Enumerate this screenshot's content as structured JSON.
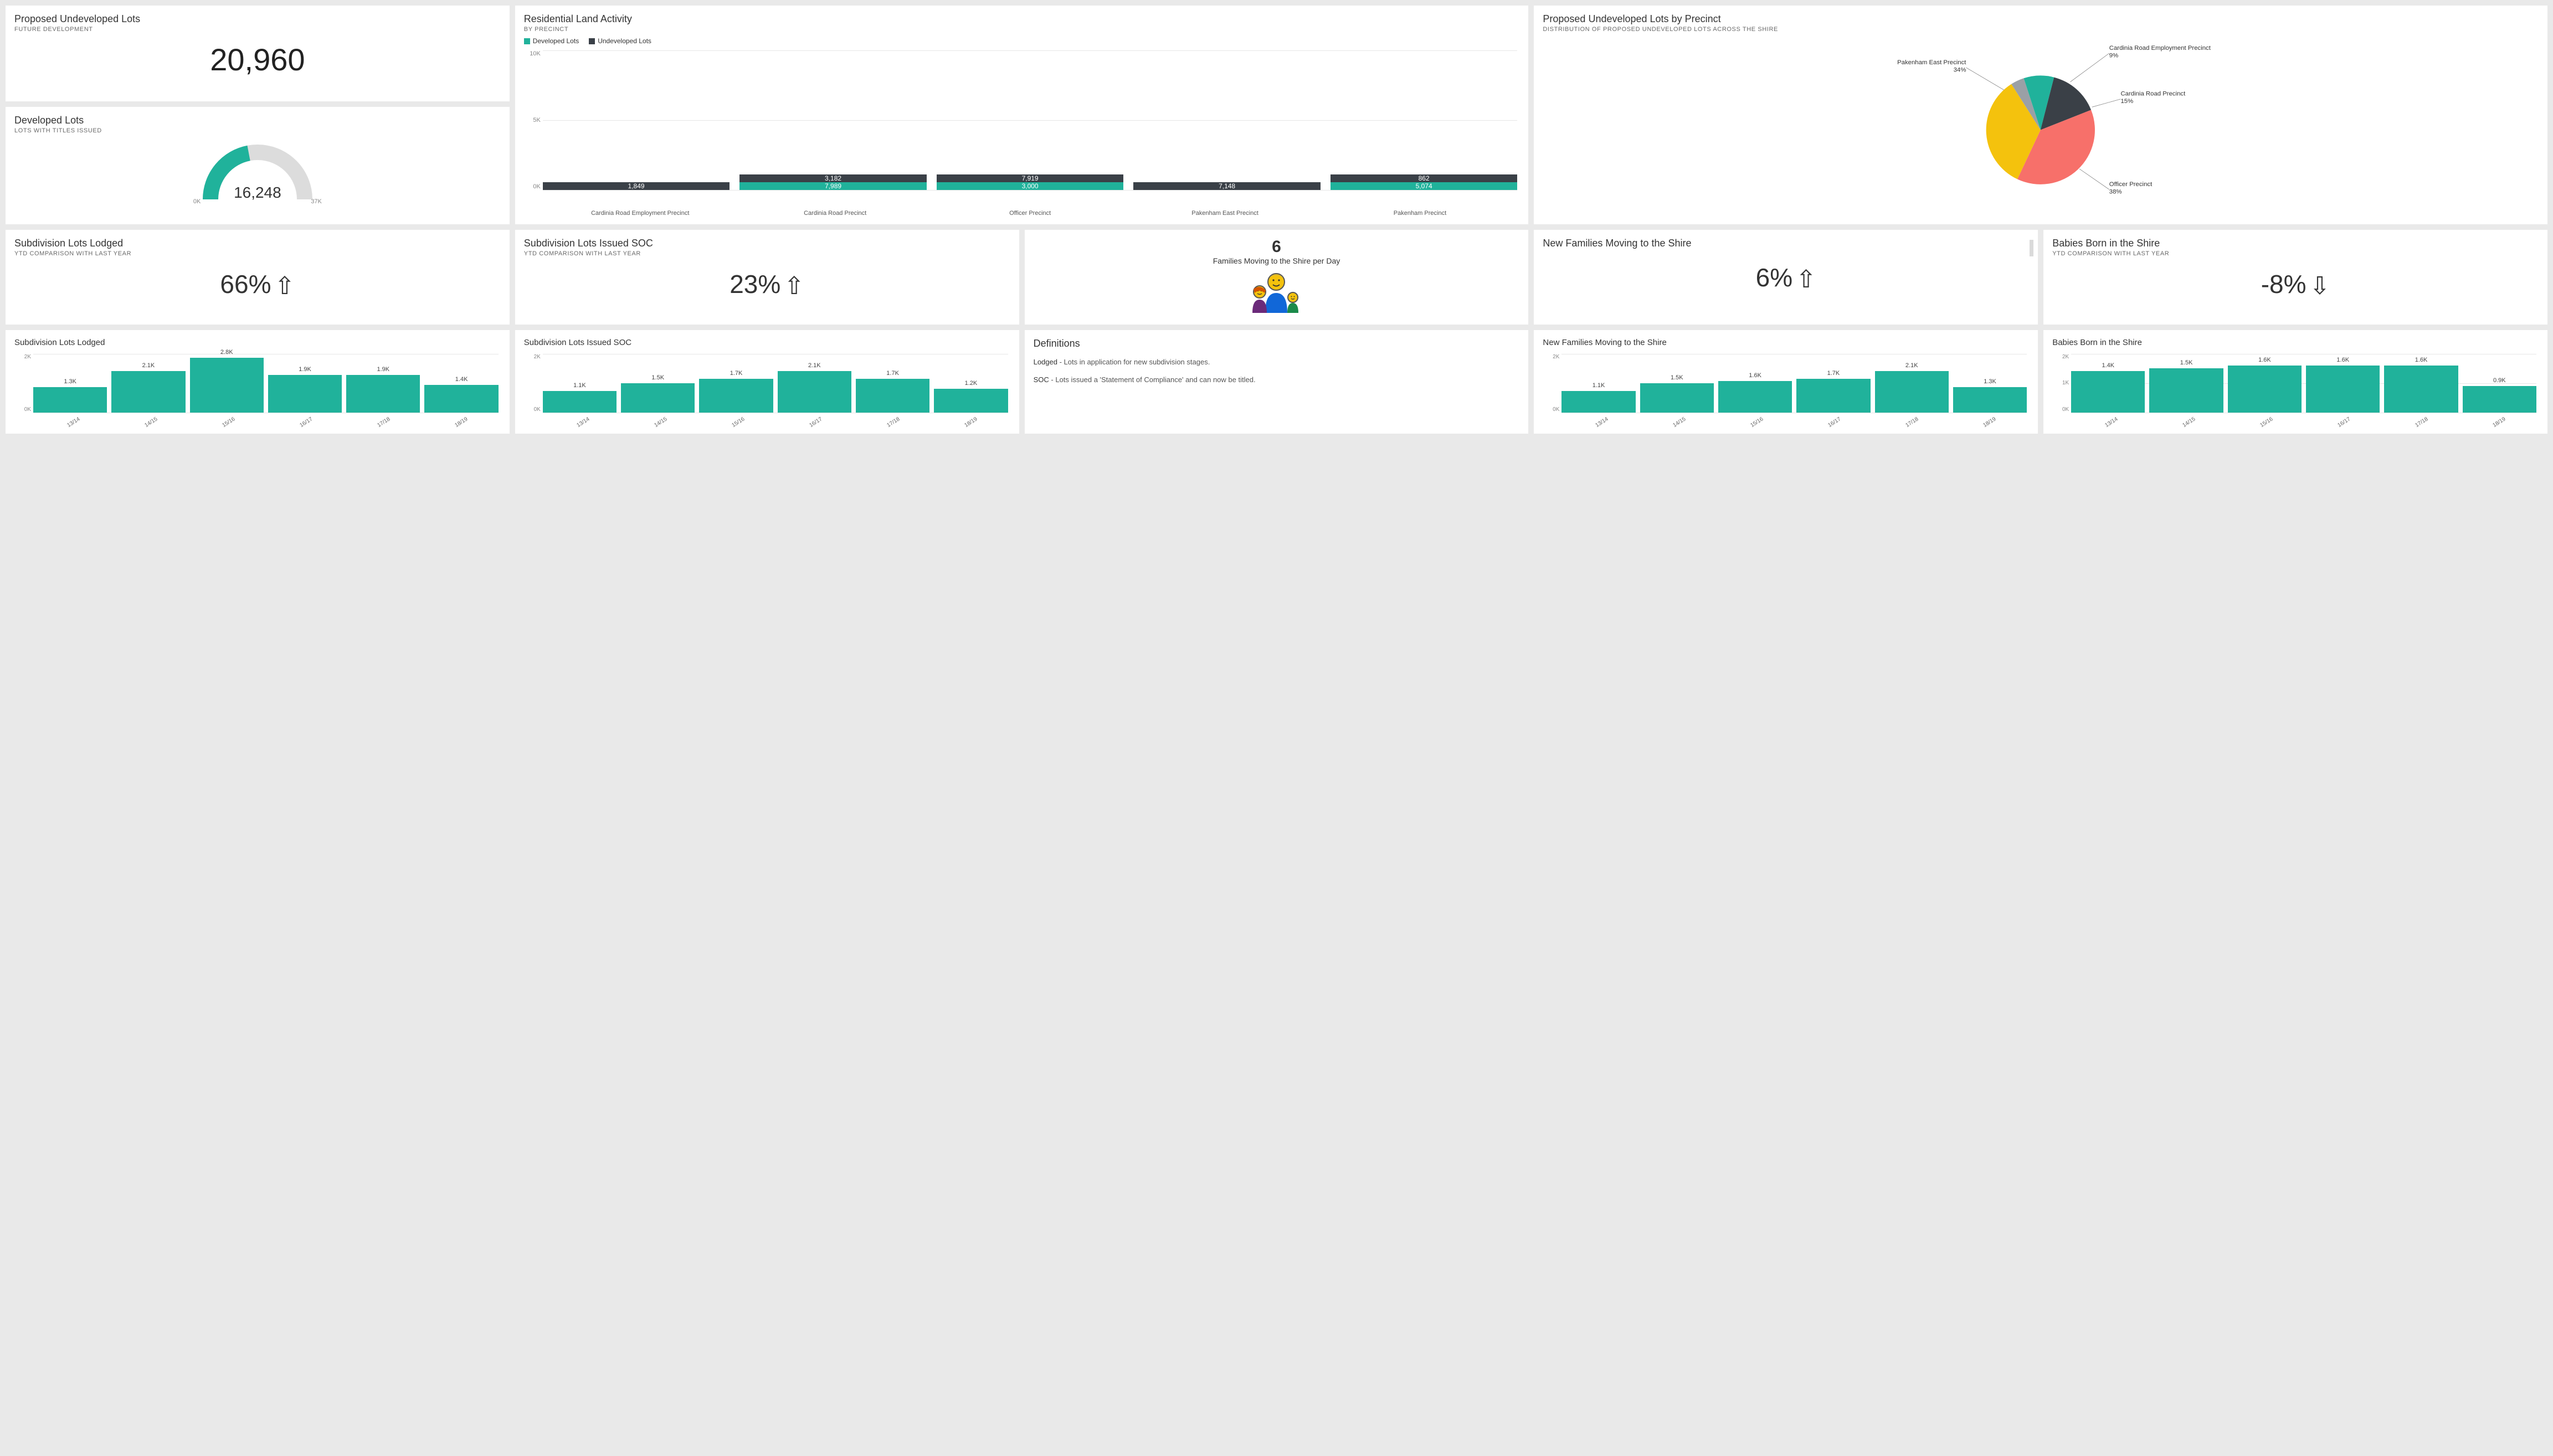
{
  "colors": {
    "teal": "#20b29b",
    "dark": "#3a4047",
    "yellow": "#f4c20d",
    "coral": "#f7706a",
    "grey": "#9aa0a6",
    "card_bg": "#ffffff",
    "page_bg": "#e9e9e9",
    "grid": "#e6e6e6"
  },
  "cards": {
    "undeveloped_kpi": {
      "title": "Proposed Undeveloped Lots",
      "sub": "FUTURE DEVELOPMENT",
      "value": "20,960"
    },
    "developed_gauge": {
      "title": "Developed Lots",
      "sub": "LOTS WITH TITLES ISSUED",
      "value": "16,248",
      "min": "0K",
      "max": "37K",
      "fraction": 0.44
    },
    "land_activity": {
      "title": "Residential Land Activity",
      "sub": "BY PRECINCT",
      "legend": [
        {
          "label": "Developed Lots",
          "color": "#20b29b"
        },
        {
          "label": "Undeveloped Lots",
          "color": "#3a4047"
        }
      ],
      "ymax": 12000,
      "yticks": [
        "10K",
        "5K",
        "0K"
      ],
      "bars": [
        {
          "name": "Cardinia Road Employment Precinct",
          "dev": 0,
          "dev_lbl": "",
          "und": 1849,
          "und_lbl": "1,849"
        },
        {
          "name": "Cardinia Road Precinct",
          "dev": 7989,
          "dev_lbl": "7,989",
          "und": 3182,
          "und_lbl": "3,182"
        },
        {
          "name": "Officer Precinct",
          "dev": 3000,
          "dev_lbl": "3,000",
          "und": 7919,
          "und_lbl": "7,919"
        },
        {
          "name": "Pakenham East Precinct",
          "dev": 0,
          "dev_lbl": "",
          "und": 7148,
          "und_lbl": "7,148"
        },
        {
          "name": "Pakenham Precinct",
          "dev": 5074,
          "dev_lbl": "5,074",
          "und": 862,
          "und_lbl": "862"
        }
      ]
    },
    "pie": {
      "title": "Proposed Undeveloped Lots by Precinct",
      "sub": "DISTRIBUTION OF PROPOSED UNDEVELOPED LOTS ACROSS THE SHIRE",
      "slices": [
        {
          "label": "Cardinia Road Employment Precinct 9%",
          "short": "Cardinia Road Employment Precinct",
          "pctlbl": "9%",
          "value": 9,
          "color": "#20b29b"
        },
        {
          "label": "Cardinia Road Precinct 15%",
          "short": "Cardinia Road Precinct",
          "pctlbl": "15%",
          "value": 15,
          "color": "#3a4047"
        },
        {
          "label": "Officer Precinct 38%",
          "short": "Officer Precinct",
          "pctlbl": "38%",
          "value": 38,
          "color": "#f7706a"
        },
        {
          "label": "Pakenham East Precinct 34%",
          "short": "Pakenham East Precinct",
          "pctlbl": "34%",
          "value": 34,
          "color": "#f4c20d"
        },
        {
          "label": "(other) 4%",
          "short": "",
          "pctlbl": "",
          "value": 4,
          "color": "#9aa0a6"
        }
      ]
    },
    "families_per_day": {
      "value": "6",
      "text": "Families Moving to the Shire per Day"
    },
    "definitions": {
      "title": "Definitions",
      "lodged_term": "Lodged",
      "lodged_def": " - Lots in application for new subdivision stages.",
      "soc_term": "SOC",
      "soc_def": " - Lots issued a 'Statement of Compliance' and can now be titled."
    },
    "trend_cards": {
      "lodged": {
        "title": "Subdivision Lots Lodged",
        "sub": "YTD COMPARISON WITH LAST YEAR",
        "value": "66%",
        "dir": "up"
      },
      "soc": {
        "title": "Subdivision Lots Issued SOC",
        "sub": "YTD COMPARISON WITH LAST YEAR",
        "value": "23%",
        "dir": "up"
      },
      "families": {
        "title": "New Families Moving to the Shire",
        "sub": "",
        "value": "6%",
        "dir": "up"
      },
      "babies": {
        "title": "Babies Born in the Shire",
        "sub": "YTD COMPARISON WITH LAST YEAR",
        "value": "-8%",
        "dir": "down"
      }
    },
    "mini_charts": {
      "years": [
        "13/14",
        "14/15",
        "15/16",
        "16/17",
        "17/18",
        "18/19"
      ],
      "ymax": 3000,
      "yticks": [
        "2K",
        "0K"
      ],
      "lodged": {
        "title": "Subdivision Lots Lodged",
        "labels": [
          "1.3K",
          "2.1K",
          "2.8K",
          "1.9K",
          "1.9K",
          "1.4K"
        ],
        "values": [
          1300,
          2100,
          2800,
          1900,
          1900,
          1400
        ]
      },
      "soc": {
        "title": "Subdivision Lots Issued SOC",
        "labels": [
          "1.1K",
          "1.5K",
          "1.7K",
          "2.1K",
          "1.7K",
          "1.2K"
        ],
        "values": [
          1100,
          1500,
          1700,
          2100,
          1700,
          1200
        ]
      },
      "families": {
        "title": "New Families Moving to the Shire",
        "labels": [
          "1.1K",
          "1.5K",
          "1.6K",
          "1.7K",
          "2.1K",
          "1.3K"
        ],
        "values": [
          1100,
          1500,
          1600,
          1700,
          2100,
          1300
        ]
      },
      "babies": {
        "title": "Babies Born in the Shire",
        "labels": [
          "1.4K",
          "1.5K",
          "1.6K",
          "1.6K",
          "1.6K",
          "0.9K"
        ],
        "values": [
          1400,
          1500,
          1600,
          1600,
          1600,
          900
        ],
        "ymax": 2000,
        "yticks": [
          "2K",
          "1K",
          "0K"
        ]
      }
    }
  }
}
